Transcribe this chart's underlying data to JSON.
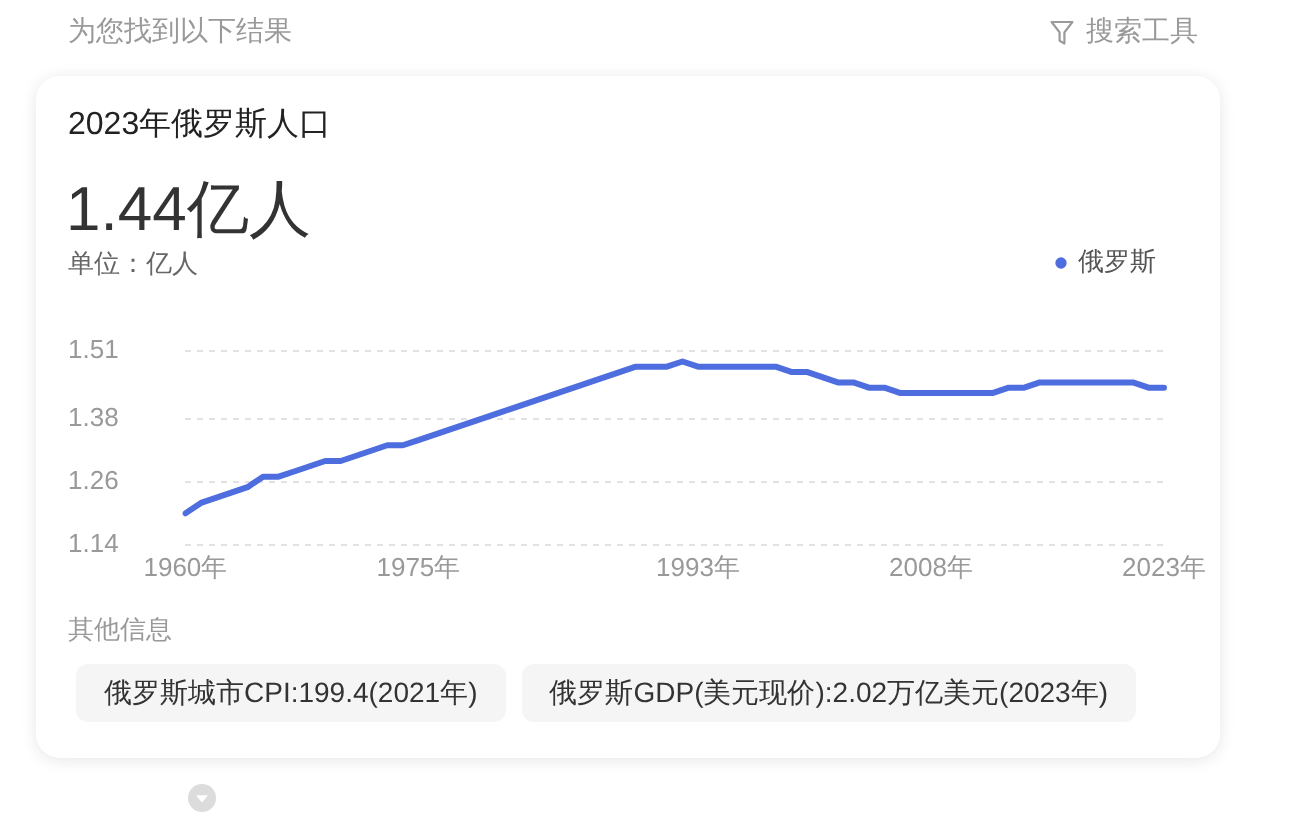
{
  "chart_data": {
    "type": "line",
    "title": "2023年俄罗斯人口",
    "subtitle": "1.44亿人",
    "ylabel": "单位：亿人",
    "annotations": [
      "为您找到以下结果",
      "搜索工具",
      "其他信息",
      "俄罗斯城市CPI:199.4(2021年)",
      "俄罗斯GDP(美元现价):2.02万亿美元(2023年)"
    ],
    "categories": [
      "1960年",
      null,
      null,
      null,
      null,
      null,
      null,
      null,
      null,
      null,
      null,
      null,
      null,
      null,
      null,
      "1975年",
      null,
      null,
      null,
      null,
      null,
      null,
      null,
      null,
      null,
      null,
      null,
      null,
      null,
      null,
      null,
      null,
      null,
      "1993年",
      null,
      null,
      null,
      null,
      null,
      null,
      null,
      null,
      null,
      null,
      null,
      null,
      null,
      null,
      "2008年",
      null,
      null,
      null,
      null,
      null,
      null,
      null,
      null,
      null,
      null,
      null,
      null,
      null,
      null,
      "2023年"
    ],
    "series": [
      {
        "name": "俄罗斯",
        "color": "#4e6ddf",
        "values": [
          1.2,
          1.22,
          1.23,
          1.24,
          1.25,
          1.27,
          1.27,
          1.28,
          1.29,
          1.3,
          1.3,
          1.31,
          1.32,
          1.33,
          1.33,
          1.34,
          1.35,
          1.36,
          1.37,
          1.38,
          1.39,
          1.4,
          1.41,
          1.42,
          1.43,
          1.44,
          1.45,
          1.46,
          1.47,
          1.48,
          1.48,
          1.48,
          1.49,
          1.48,
          1.48,
          1.48,
          1.48,
          1.48,
          1.48,
          1.47,
          1.47,
          1.46,
          1.45,
          1.45,
          1.44,
          1.44,
          1.43,
          1.43,
          1.43,
          1.43,
          1.43,
          1.43,
          1.43,
          1.44,
          1.44,
          1.45,
          1.45,
          1.45,
          1.45,
          1.45,
          1.45,
          1.45,
          1.44,
          1.44
        ]
      }
    ],
    "ylim": [
      1.14,
      1.51
    ],
    "yticks": [
      1.14,
      1.26,
      1.38,
      1.51
    ],
    "grid": "y",
    "legend": "top right"
  }
}
